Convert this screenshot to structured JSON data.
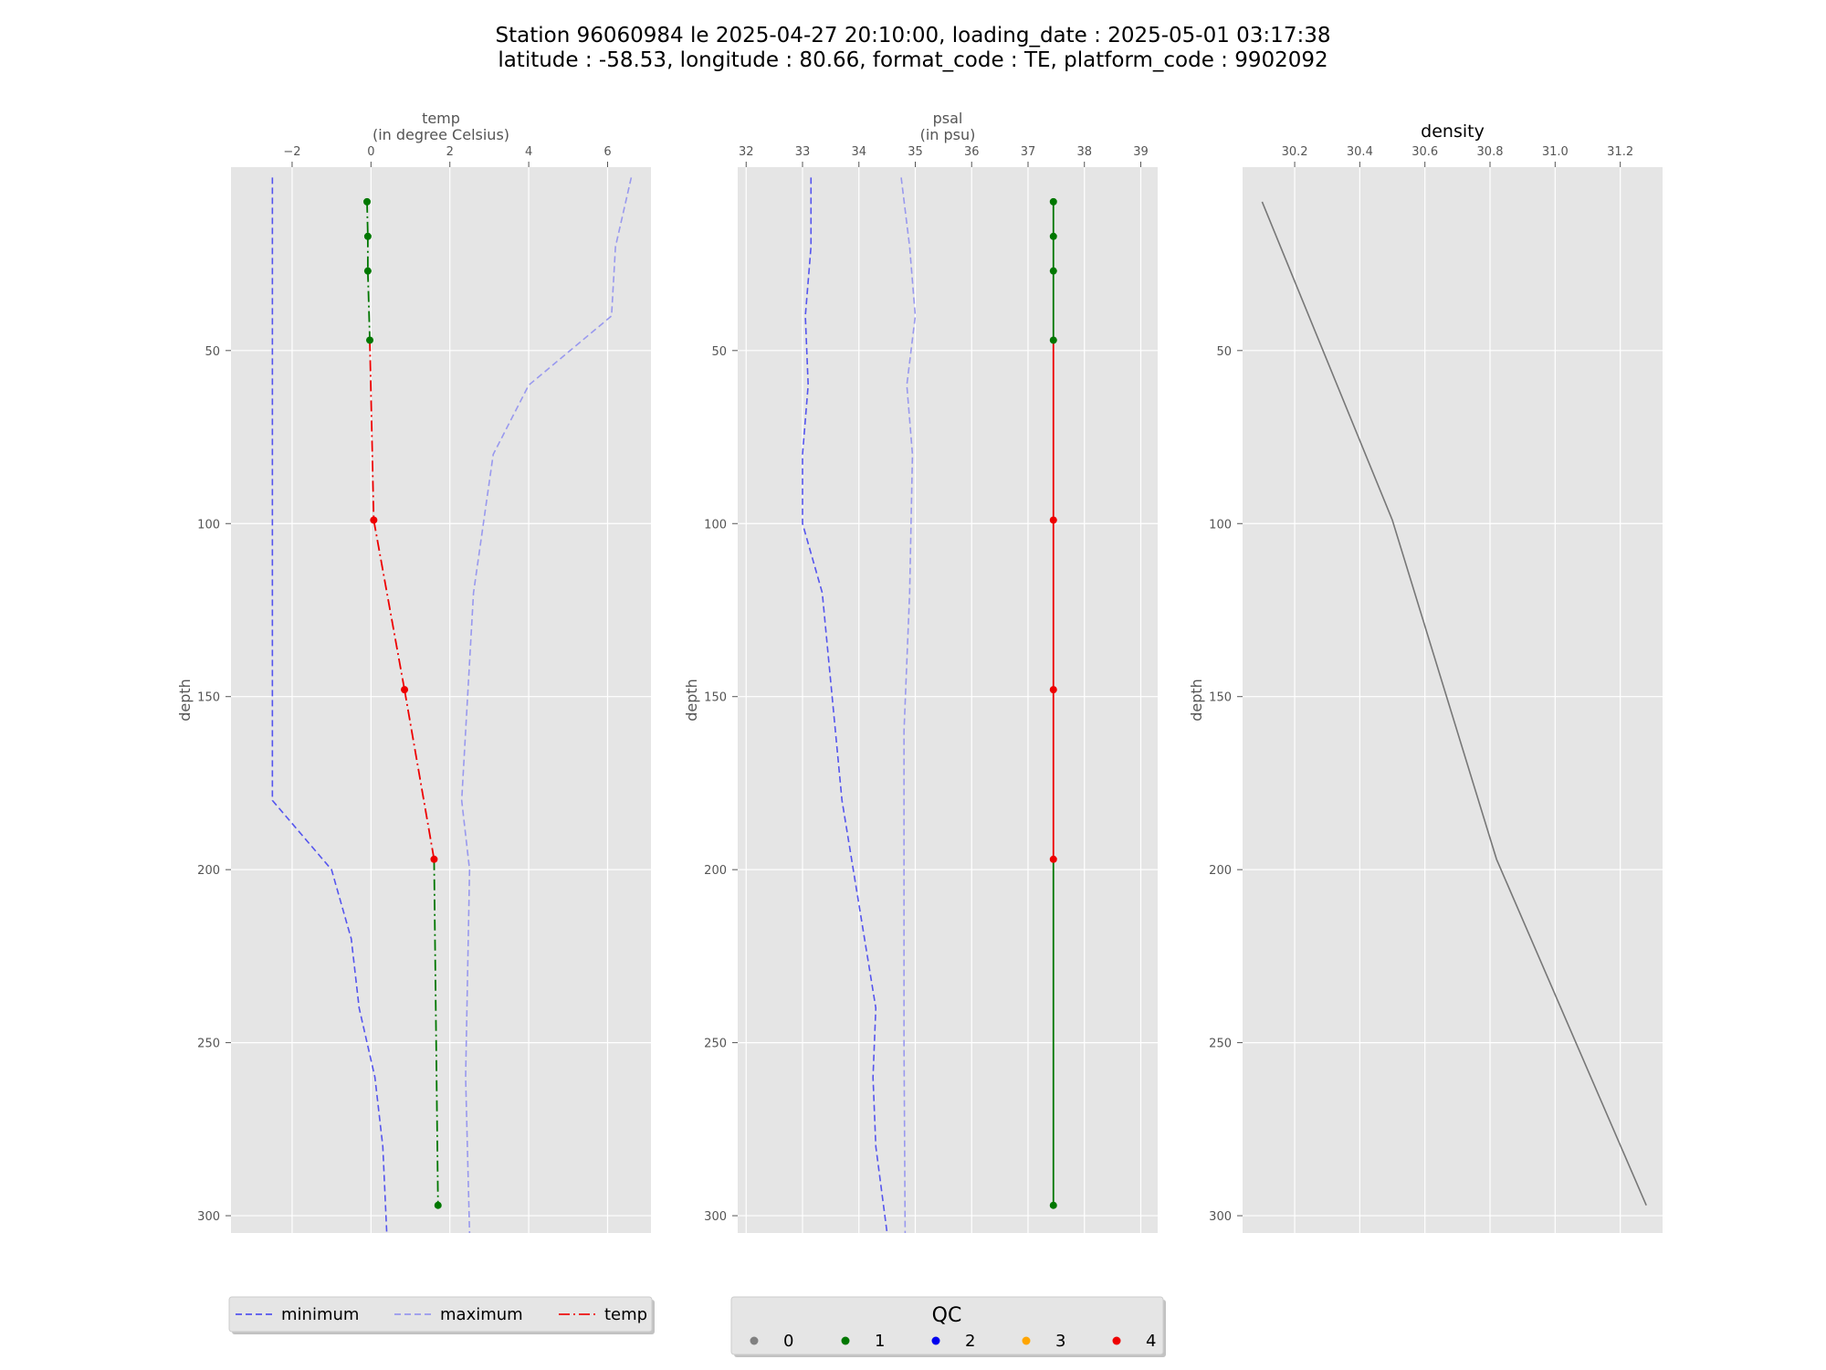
{
  "title": {
    "line1": "Station 96060984 le 2025-04-27 20:10:00, loading_date : 2025-05-01 03:17:38",
    "line2": "latitude : -58.53, longitude : 80.66, format_code : TE, platform_code : 9902092"
  },
  "chart_data": [
    {
      "type": "line",
      "title": "",
      "xlabel": "temp\n(in degree Celsius)",
      "ylabel": "depth",
      "xlim": [
        -3.55,
        7.1
      ],
      "ylim": [
        305,
        -3
      ],
      "y_inverted": true,
      "grid": true,
      "xticks": [
        -2,
        0,
        2,
        4,
        6
      ],
      "yticks": [
        50,
        100,
        150,
        200,
        250,
        300
      ],
      "xtick_labels": [
        "−2",
        "0",
        "2",
        "4",
        "6"
      ],
      "series": [
        {
          "name": "minimum",
          "style": "dashed",
          "color": "#5555ee",
          "x": [
            -2.5,
            -2.5,
            -2.5,
            -1.0,
            -0.5,
            -0.3,
            0.1,
            0.3,
            0.4
          ],
          "y": [
            0,
            100,
            180,
            200,
            220,
            240,
            260,
            280,
            305
          ]
        },
        {
          "name": "maximum",
          "style": "dashed",
          "color": "#9999ee",
          "x": [
            6.6,
            6.2,
            6.1,
            4.0,
            3.1,
            2.6,
            2.4,
            2.3,
            2.5,
            2.4,
            2.5
          ],
          "y": [
            0,
            20,
            40,
            60,
            80,
            120,
            160,
            180,
            200,
            260,
            305
          ]
        },
        {
          "name": "temp",
          "style": "dashdot",
          "x": [
            -0.1,
            -0.08,
            -0.08,
            -0.03,
            0.07,
            0.85,
            1.6,
            1.7
          ],
          "y": [
            7,
            17,
            27,
            47,
            99,
            148,
            197,
            297
          ],
          "qc": [
            1,
            1,
            1,
            1,
            4,
            4,
            4,
            1
          ]
        }
      ]
    },
    {
      "type": "line",
      "title": "",
      "xlabel": "psal\n(in psu)",
      "ylabel": "depth",
      "xlim": [
        31.85,
        39.3
      ],
      "ylim": [
        305,
        -3
      ],
      "y_inverted": true,
      "grid": true,
      "xticks": [
        32,
        33,
        34,
        35,
        36,
        37,
        38,
        39
      ],
      "yticks": [
        50,
        100,
        150,
        200,
        250,
        300
      ],
      "series": [
        {
          "name": "minimum",
          "style": "dashed",
          "color": "#5555ee",
          "x": [
            33.15,
            33.15,
            33.05,
            33.1,
            33.0,
            33.0,
            33.35,
            33.7,
            34.3,
            34.25,
            34.3,
            34.5
          ],
          "y": [
            0,
            20,
            40,
            60,
            80,
            100,
            120,
            180,
            240,
            260,
            280,
            305
          ]
        },
        {
          "name": "maximum",
          "style": "dashed",
          "color": "#9999ee",
          "x": [
            34.75,
            34.9,
            35.0,
            34.85,
            34.95,
            34.9,
            34.8,
            34.8,
            34.82
          ],
          "y": [
            0,
            20,
            40,
            60,
            80,
            120,
            160,
            250,
            305
          ]
        },
        {
          "name": "psal",
          "style": "solid",
          "x": [
            37.45,
            37.45,
            37.45,
            37.45,
            37.45,
            37.45,
            37.45,
            37.45
          ],
          "y": [
            7,
            17,
            27,
            47,
            99,
            148,
            197,
            297
          ],
          "qc": [
            1,
            1,
            1,
            1,
            4,
            4,
            4,
            1
          ]
        }
      ]
    },
    {
      "type": "line",
      "title": "density",
      "xlabel": "",
      "ylabel": "depth",
      "xlim": [
        30.04,
        31.33
      ],
      "ylim": [
        305,
        -3
      ],
      "y_inverted": true,
      "grid": true,
      "xticks": [
        30.2,
        30.4,
        30.6,
        30.8,
        31.0,
        31.2
      ],
      "xtick_labels": [
        "30.2",
        "30.4",
        "30.6",
        "30.8",
        "31.0",
        "31.2"
      ],
      "yticks": [
        50,
        100,
        150,
        200,
        250,
        300
      ],
      "series": [
        {
          "style": "solid",
          "color": "#777777",
          "x": [
            30.1,
            30.5,
            30.82,
            31.28
          ],
          "y": [
            7,
            99,
            197,
            297
          ]
        }
      ]
    }
  ],
  "legend_left": {
    "items": [
      {
        "label": "minimum",
        "color": "#5555ee",
        "style": "dashed"
      },
      {
        "label": "maximum",
        "color": "#9999ee",
        "style": "dashed"
      },
      {
        "label": "temp",
        "color": "#ee1111",
        "style": "dashdot"
      }
    ]
  },
  "legend_qc": {
    "title": "QC",
    "items": [
      {
        "label": "0",
        "color": "#808080"
      },
      {
        "label": "1",
        "color": "#007700"
      },
      {
        "label": "2",
        "color": "#0000ee"
      },
      {
        "label": "3",
        "color": "#ffa500"
      },
      {
        "label": "4",
        "color": "#ee0000"
      }
    ]
  },
  "colors": {
    "panel_bg": "#e5e5e5",
    "grid": "#ffffff",
    "qc_good": "#007700",
    "qc_bad": "#ee0000"
  }
}
